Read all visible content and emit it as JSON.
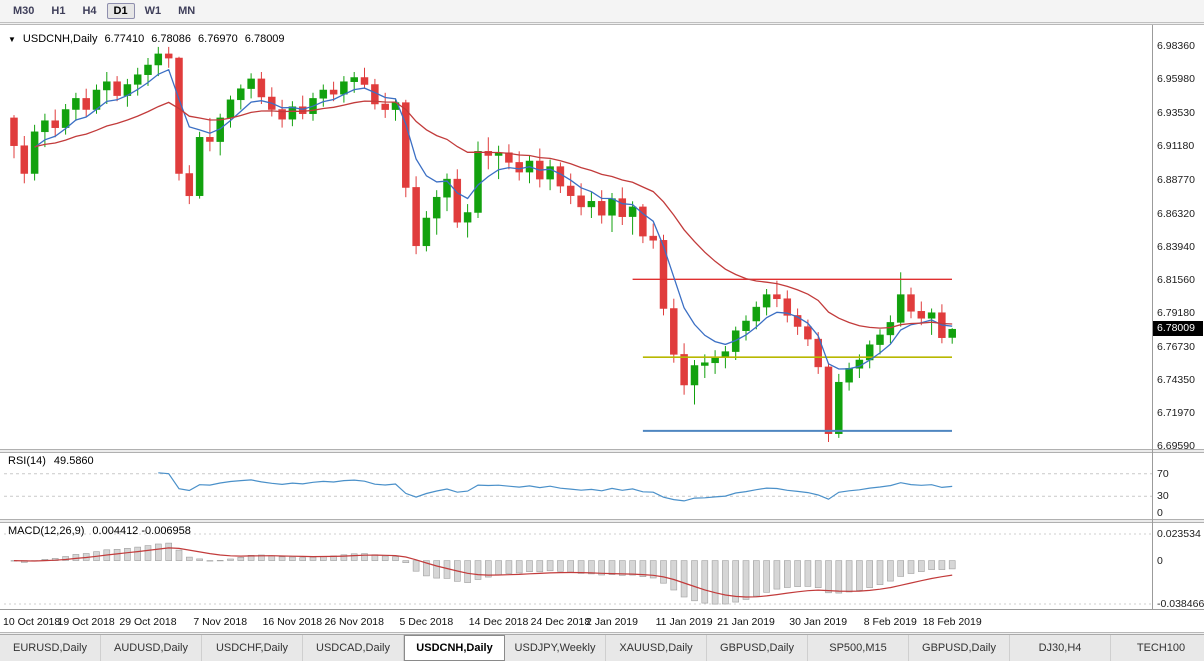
{
  "toolbar": {
    "timeframes": [
      {
        "label": "M30",
        "active": false
      },
      {
        "label": "H1",
        "active": false
      },
      {
        "label": "H4",
        "active": false
      },
      {
        "label": "D1",
        "active": true
      },
      {
        "label": "W1",
        "active": false
      },
      {
        "label": "MN",
        "active": false
      }
    ]
  },
  "chart_header": {
    "dropdown_icon": "▼",
    "symbol": "USDCNH,Daily",
    "open": "6.77410",
    "high": "6.78086",
    "low": "6.76970",
    "close": "6.78009"
  },
  "current_price": "6.78009",
  "rsi_panel": {
    "title": "RSI(14)",
    "value": "49.5860",
    "axis_labels": [
      "70",
      "30",
      "0"
    ]
  },
  "macd_panel": {
    "title": "MACD(12,26,9)",
    "values": "0.004412 -0.006958",
    "axis_labels": [
      "0.023534",
      "0",
      "-0.038466"
    ]
  },
  "bottom_tabs": [
    {
      "label": "EURUSD,Daily",
      "active": false
    },
    {
      "label": "AUDUSD,Daily",
      "active": false
    },
    {
      "label": "USDCHF,Daily",
      "active": false
    },
    {
      "label": "USDCAD,Daily",
      "active": false
    },
    {
      "label": "USDCNH,Daily",
      "active": true
    },
    {
      "label": "USDJPY,Weekly",
      "active": false
    },
    {
      "label": "XAUUSD,Daily",
      "active": false
    },
    {
      "label": "GBPUSD,Daily",
      "active": false
    },
    {
      "label": "SP500,M15",
      "active": false
    },
    {
      "label": "GBPUSD,Daily",
      "active": false
    },
    {
      "label": "DJ30,H4",
      "active": false
    },
    {
      "label": "TECH100",
      "active": false
    }
  ],
  "colors": {
    "bull": "#12a10e",
    "bear": "#e03c3c",
    "ma_fast": "#3b6fc4",
    "ma_slow": "#c23b3b",
    "rsi_line": "#4a90c9",
    "macd_histogram": "#d6d6d6",
    "macd_signal": "#c23b3b",
    "badge_bg": "#000000"
  },
  "chart_data": {
    "type": "candlestick",
    "title": "USDCNH,Daily",
    "y_range": [
      6.694,
      6.993
    ],
    "y_axis_labels": [
      "6.98360",
      "6.95980",
      "6.93530",
      "6.91180",
      "6.88770",
      "6.86320",
      "6.83940",
      "6.81560",
      "6.79180",
      "6.76730",
      "6.74350",
      "6.71970",
      "6.69590"
    ],
    "x_axis_labels": [
      {
        "text": "10 Oct 2018",
        "bar": 0
      },
      {
        "text": "19 Oct 2018",
        "bar": 7
      },
      {
        "text": "29 Oct 2018",
        "bar": 13
      },
      {
        "text": "7 Nov 2018",
        "bar": 20
      },
      {
        "text": "16 Nov 2018",
        "bar": 27
      },
      {
        "text": "26 Nov 2018",
        "bar": 33
      },
      {
        "text": "5 Dec 2018",
        "bar": 40
      },
      {
        "text": "14 Dec 2018",
        "bar": 47
      },
      {
        "text": "24 Dec 2018",
        "bar": 53
      },
      {
        "text": "2 Jan 2019",
        "bar": 58
      },
      {
        "text": "11 Jan 2019",
        "bar": 65
      },
      {
        "text": "21 Jan 2019",
        "bar": 71
      },
      {
        "text": "30 Jan 2019",
        "bar": 78
      },
      {
        "text": "8 Feb 2019",
        "bar": 85
      },
      {
        "text": "18 Feb 2019",
        "bar": 91
      }
    ],
    "candles": [
      [
        6.932,
        6.934,
        6.903,
        6.912
      ],
      [
        6.912,
        6.919,
        6.885,
        6.892
      ],
      [
        6.892,
        6.927,
        6.887,
        6.922
      ],
      [
        6.922,
        6.935,
        6.911,
        6.93
      ],
      [
        6.93,
        6.938,
        6.918,
        6.925
      ],
      [
        6.925,
        6.942,
        6.92,
        6.938
      ],
      [
        6.938,
        6.95,
        6.93,
        6.946
      ],
      [
        6.946,
        6.953,
        6.933,
        6.938
      ],
      [
        6.938,
        6.956,
        6.935,
        6.952
      ],
      [
        6.952,
        6.965,
        6.942,
        6.958
      ],
      [
        6.958,
        6.962,
        6.944,
        6.948
      ],
      [
        6.948,
        6.96,
        6.94,
        6.956
      ],
      [
        6.956,
        6.968,
        6.948,
        6.963
      ],
      [
        6.963,
        6.975,
        6.955,
        6.97
      ],
      [
        6.97,
        6.983,
        6.962,
        6.978
      ],
      [
        6.978,
        6.983,
        6.968,
        6.975
      ],
      [
        6.975,
        6.976,
        6.887,
        6.892
      ],
      [
        6.892,
        6.898,
        6.87,
        6.876
      ],
      [
        6.876,
        6.922,
        6.874,
        6.918
      ],
      [
        6.918,
        6.932,
        6.908,
        6.915
      ],
      [
        6.915,
        6.935,
        6.905,
        6.932
      ],
      [
        6.932,
        6.948,
        6.925,
        6.945
      ],
      [
        6.945,
        6.956,
        6.938,
        6.953
      ],
      [
        6.953,
        6.964,
        6.946,
        6.96
      ],
      [
        6.96,
        6.965,
        6.942,
        6.947
      ],
      [
        6.947,
        6.954,
        6.933,
        6.938
      ],
      [
        6.938,
        6.945,
        6.925,
        6.931
      ],
      [
        6.931,
        6.944,
        6.926,
        6.94
      ],
      [
        6.94,
        6.948,
        6.931,
        6.935
      ],
      [
        6.935,
        6.95,
        6.93,
        6.946
      ],
      [
        6.946,
        6.956,
        6.94,
        6.952
      ],
      [
        6.952,
        6.958,
        6.944,
        6.949
      ],
      [
        6.949,
        6.962,
        6.943,
        6.958
      ],
      [
        6.958,
        6.965,
        6.95,
        6.961
      ],
      [
        6.961,
        6.968,
        6.953,
        6.956
      ],
      [
        6.956,
        6.96,
        6.938,
        6.942
      ],
      [
        6.942,
        6.95,
        6.932,
        6.938
      ],
      [
        6.938,
        6.946,
        6.93,
        6.943
      ],
      [
        6.943,
        6.945,
        6.875,
        6.882
      ],
      [
        6.882,
        6.89,
        6.834,
        6.84
      ],
      [
        6.84,
        6.865,
        6.836,
        6.86
      ],
      [
        6.86,
        6.88,
        6.848,
        6.875
      ],
      [
        6.875,
        6.892,
        6.865,
        6.888
      ],
      [
        6.888,
        6.895,
        6.853,
        6.857
      ],
      [
        6.857,
        6.87,
        6.846,
        6.864
      ],
      [
        6.864,
        6.915,
        6.86,
        6.908
      ],
      [
        6.908,
        6.918,
        6.895,
        6.905
      ],
      [
        6.905,
        6.912,
        6.888,
        6.907
      ],
      [
        6.907,
        6.913,
        6.895,
        6.9
      ],
      [
        6.9,
        6.908,
        6.887,
        6.893
      ],
      [
        6.893,
        6.905,
        6.885,
        6.901
      ],
      [
        6.901,
        6.91,
        6.882,
        6.888
      ],
      [
        6.888,
        6.902,
        6.88,
        6.897
      ],
      [
        6.897,
        6.9,
        6.878,
        6.883
      ],
      [
        6.883,
        6.892,
        6.87,
        6.876
      ],
      [
        6.876,
        6.885,
        6.862,
        6.868
      ],
      [
        6.868,
        6.879,
        6.86,
        6.872
      ],
      [
        6.872,
        6.88,
        6.856,
        6.862
      ],
      [
        6.862,
        6.878,
        6.85,
        6.874
      ],
      [
        6.874,
        6.882,
        6.855,
        6.861
      ],
      [
        6.861,
        6.872,
        6.848,
        6.868
      ],
      [
        6.868,
        6.87,
        6.842,
        6.847
      ],
      [
        6.847,
        6.856,
        6.838,
        6.844
      ],
      [
        6.844,
        6.848,
        6.79,
        6.795
      ],
      [
        6.795,
        6.802,
        6.756,
        6.762
      ],
      [
        6.762,
        6.77,
        6.733,
        6.74
      ],
      [
        6.74,
        6.758,
        6.726,
        6.754
      ],
      [
        6.754,
        6.762,
        6.745,
        6.756
      ],
      [
        6.756,
        6.765,
        6.748,
        6.76
      ],
      [
        6.76,
        6.768,
        6.752,
        6.764
      ],
      [
        6.764,
        6.782,
        6.758,
        6.779
      ],
      [
        6.779,
        6.79,
        6.772,
        6.786
      ],
      [
        6.786,
        6.8,
        6.78,
        6.796
      ],
      [
        6.796,
        6.809,
        6.79,
        6.805
      ],
      [
        6.805,
        6.815,
        6.796,
        6.802
      ],
      [
        6.802,
        6.808,
        6.785,
        6.79
      ],
      [
        6.79,
        6.795,
        6.776,
        6.782
      ],
      [
        6.782,
        6.787,
        6.768,
        6.773
      ],
      [
        6.773,
        6.778,
        6.748,
        6.753
      ],
      [
        6.753,
        6.756,
        6.699,
        6.705
      ],
      [
        6.705,
        6.748,
        6.702,
        6.742
      ],
      [
        6.742,
        6.756,
        6.736,
        6.752
      ],
      [
        6.752,
        6.762,
        6.745,
        6.758
      ],
      [
        6.758,
        6.772,
        6.752,
        6.769
      ],
      [
        6.769,
        6.78,
        6.762,
        6.776
      ],
      [
        6.776,
        6.79,
        6.77,
        6.785
      ],
      [
        6.785,
        6.821,
        6.782,
        6.805
      ],
      [
        6.805,
        6.81,
        6.788,
        6.793
      ],
      [
        6.793,
        6.8,
        6.783,
        6.788
      ],
      [
        6.788,
        6.795,
        6.776,
        6.792
      ],
      [
        6.792,
        6.798,
        6.77,
        6.774
      ],
      [
        6.7741,
        6.78086,
        6.7697,
        6.78009
      ]
    ],
    "hlines": [
      {
        "value": 6.816,
        "from_bar": 60,
        "color": "#e03030",
        "width": 1.4
      },
      {
        "value": 6.76,
        "from_bar": 61,
        "color": "#b8b800",
        "width": 1.6
      },
      {
        "value": 6.707,
        "from_bar": 61,
        "color": "#4f86c0",
        "width": 2
      }
    ],
    "indicators": {
      "ma_fast_period": 6,
      "ma_slow_period": 22,
      "rsi": {
        "period": 14,
        "value": 49.586,
        "levels": [
          70,
          30
        ],
        "range": [
          0,
          100
        ]
      },
      "macd": {
        "fast": 12,
        "slow": 26,
        "signal": 9,
        "macd_value": 0.004412,
        "signal_value": -0.006958,
        "y_range": [
          -0.038466,
          0.023534
        ]
      }
    }
  }
}
